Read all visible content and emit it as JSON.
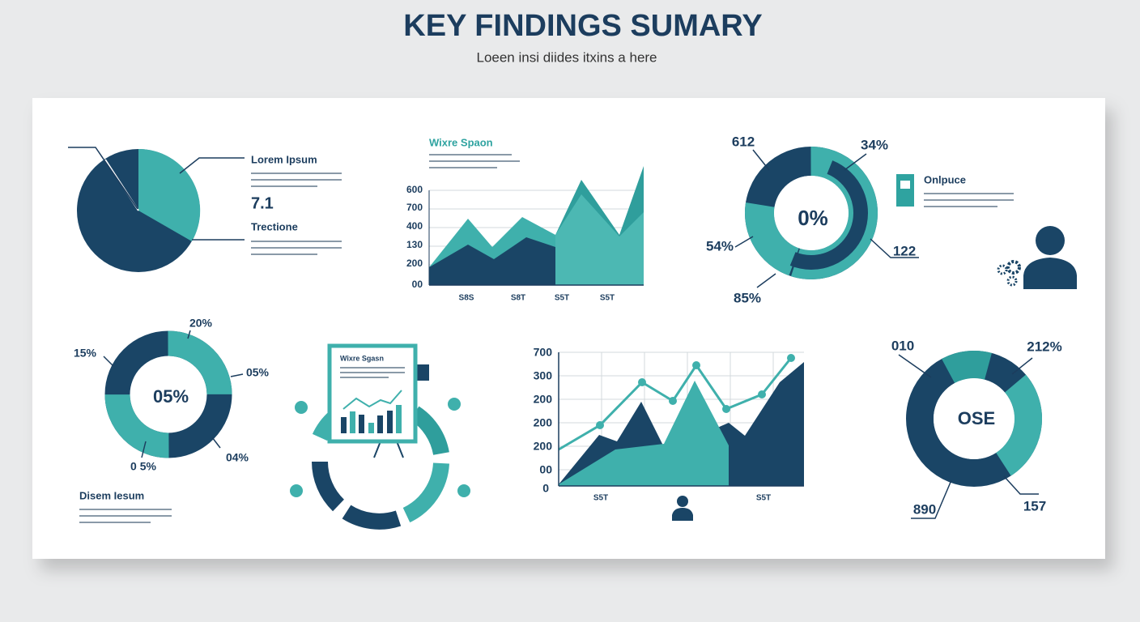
{
  "header": {
    "title": "KEY FINDINGS SUMARY",
    "subtitle": "Loeen insi diides itxins a here"
  },
  "pie_panel": {
    "heading": "Lorem Ipsum",
    "value": "7.1",
    "subheading": "Trectione"
  },
  "area_panel": {
    "title": "Wixre Spaon",
    "y_labels": [
      "600",
      "700",
      "400",
      "130",
      "200",
      "00"
    ],
    "x_labels": [
      "S8S",
      "S8T",
      "S5T",
      "S5T"
    ]
  },
  "donut_panel": {
    "labels": [
      "612",
      "34%",
      "54%",
      "122",
      "85%"
    ],
    "center": "0%",
    "heading": "Onlpuce"
  },
  "ring_panel": {
    "labels": [
      "20%",
      "15%",
      "05%",
      "0 5%",
      "04%"
    ],
    "center": "05%",
    "heading": "Disem Iesum"
  },
  "board_panel": {
    "title": "Wixre Sgasn"
  },
  "line_panel": {
    "y_labels": [
      "700",
      "300",
      "200",
      "200",
      "200",
      "00",
      "0"
    ],
    "x_labels": [
      "S5T",
      "S5T"
    ]
  },
  "big_donut_panel": {
    "labels": [
      "010",
      "212%",
      "890",
      "157"
    ],
    "center": "OSE"
  }
}
